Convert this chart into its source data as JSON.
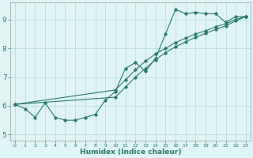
{
  "background_color": "#dff4f4",
  "grid_color": "#b8dede",
  "line_color": "#2a7a6a",
  "xlabel": "Humidex (Indice chaleur)",
  "xlim": [
    -0.5,
    23.5
  ],
  "ylim": [
    4.8,
    9.6
  ],
  "yticks": [
    5,
    6,
    7,
    8,
    9
  ],
  "xticks": [
    0,
    1,
    2,
    3,
    4,
    5,
    6,
    7,
    8,
    9,
    10,
    11,
    12,
    13,
    14,
    15,
    16,
    17,
    18,
    19,
    20,
    21,
    22,
    23
  ],
  "series": [
    {
      "x": [
        0,
        1,
        2,
        3,
        4,
        5,
        6,
        7,
        8,
        9,
        10,
        11,
        12,
        13,
        14,
        15,
        16,
        17,
        18,
        19,
        20,
        21,
        22,
        23
      ],
      "y": [
        6.05,
        5.9,
        5.6,
        6.1,
        5.6,
        5.5,
        5.5,
        5.6,
        5.7,
        6.2,
        6.5,
        7.3,
        7.5,
        7.2,
        7.65,
        8.5,
        9.35,
        9.2,
        9.25,
        9.2,
        9.2,
        8.9,
        9.1,
        9.1
      ]
    },
    {
      "x": [
        0,
        10,
        11,
        12,
        13,
        14,
        15,
        16,
        17,
        18,
        19,
        20,
        21,
        22,
        23
      ],
      "y": [
        6.05,
        6.55,
        6.9,
        7.25,
        7.55,
        7.8,
        8.0,
        8.2,
        8.35,
        8.5,
        8.6,
        8.75,
        8.85,
        9.0,
        9.1
      ]
    },
    {
      "x": [
        0,
        10,
        11,
        12,
        13,
        14,
        15,
        16,
        17,
        18,
        19,
        20,
        21,
        22,
        23
      ],
      "y": [
        6.05,
        6.3,
        6.65,
        7.0,
        7.3,
        7.6,
        7.85,
        8.05,
        8.22,
        8.38,
        8.52,
        8.65,
        8.78,
        8.95,
        9.1
      ]
    }
  ]
}
